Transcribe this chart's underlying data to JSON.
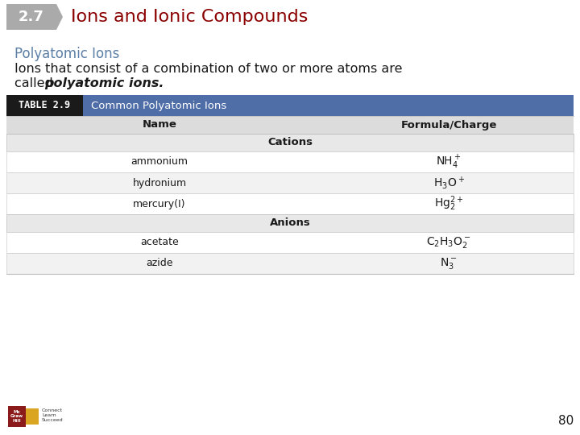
{
  "slide_number": "80",
  "section_number": "2.7",
  "title": "Ions and Ionic Compounds",
  "subtitle": "Polyatomic Ions",
  "body_text_1": "Ions that consist of a combination of two or more atoms are",
  "body_text_2": "called ",
  "body_text_bold_italic": "polyatomic ions.",
  "table_label": "TABLE 2.9",
  "table_title": "Common Polyatomic Ions",
  "col1_header": "Name",
  "col2_header": "Formula/Charge",
  "section_header_1": "Cations",
  "section_header_2": "Anions",
  "rows_cation": [
    [
      "ammonium",
      "NH$_4^+$"
    ],
    [
      "hydronium",
      "H$_3$O$^+$"
    ],
    [
      "mercury(I)",
      "Hg$_2^{2+}$"
    ]
  ],
  "rows_anion": [
    [
      "acetate",
      "C$_2$H$_3$O$_2^-$"
    ],
    [
      "azide",
      "N$_3^-$"
    ]
  ],
  "color_section_box": "#1a1a1a",
  "color_header_bar": "#4F6EA8",
  "color_col_header": "#DCDCDC",
  "color_section_row": "#E8E8E8",
  "color_data_row_white": "#FFFFFF",
  "color_data_row_light": "#F2F2F2",
  "color_title": "#8B0000",
  "color_subtitle": "#5B7FA6",
  "color_body": "#1a1a1a",
  "bg_color": "#FFFFFF",
  "number_tag_bg": "#AAAAAA",
  "logo_colors": [
    "#8B0000",
    "#228B22",
    "#1E40AF"
  ]
}
